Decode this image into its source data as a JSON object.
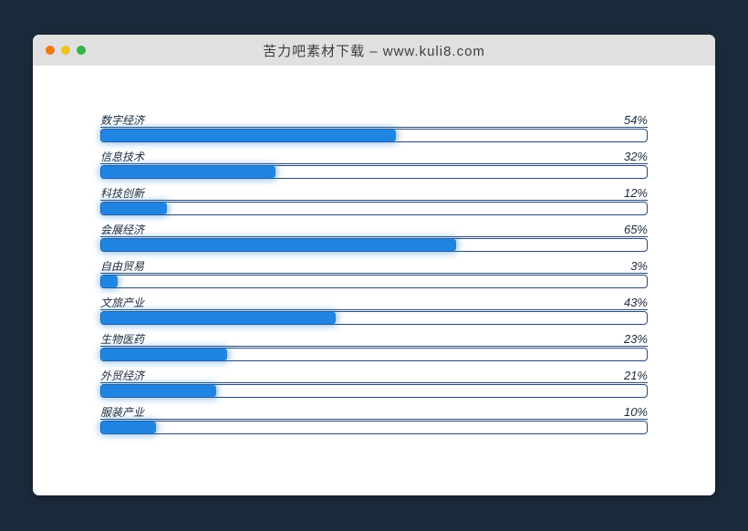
{
  "window": {
    "title": "苦力吧素材下载 – www.kuli8.com",
    "traffic_lights": [
      {
        "name": "close",
        "color": "#f0780e"
      },
      {
        "name": "minimize",
        "color": "#eec41f"
      },
      {
        "name": "maximize",
        "color": "#33b546"
      }
    ],
    "titlebar_bg": "#e0e0e0",
    "page_bg": "#1c2b3b"
  },
  "chart_data": {
    "type": "bar",
    "orientation": "horizontal",
    "title": "",
    "xlabel": "",
    "ylabel": "",
    "xlim": [
      0,
      100
    ],
    "grid": false,
    "legend": "none",
    "categories": [
      "数字经济",
      "信息技术",
      "科技创新",
      "会展经济",
      "自由贸易",
      "文旅产业",
      "生物医药",
      "外贸经济",
      "服装产业"
    ],
    "values": [
      54,
      32,
      12,
      65,
      3,
      43,
      23,
      21,
      10
    ],
    "value_labels": [
      "54%",
      "32%",
      "12%",
      "65%",
      "3%",
      "43%",
      "23%",
      "21%",
      "10%"
    ],
    "bar_color": "#2085e2",
    "track_border_color": "#27497a",
    "label_color": "#1b2b3c"
  }
}
